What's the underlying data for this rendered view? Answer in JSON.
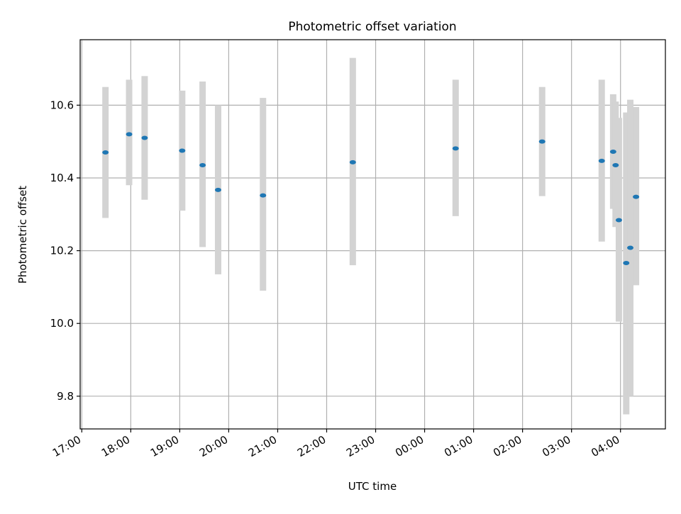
{
  "chart_data": {
    "type": "scatter",
    "title": "Photometric offset variation",
    "xlabel": "UTC time",
    "ylabel": "Photometric offset",
    "x_tick_labels": [
      "17:00",
      "18:00",
      "19:00",
      "20:00",
      "21:00",
      "22:00",
      "23:00",
      "00:00",
      "01:00",
      "02:00",
      "03:00",
      "04:00"
    ],
    "y_tick_labels": [
      "9.8",
      "10.0",
      "10.2",
      "10.4",
      "10.6"
    ],
    "y_ticks": [
      9.8,
      10.0,
      10.2,
      10.4,
      10.6
    ],
    "xlim": [
      "16:58",
      "04:55"
    ],
    "ylim": [
      9.71,
      10.78
    ],
    "grid": true,
    "colors": {
      "points": "#1f77b4",
      "error_bars": "#d3d3d3",
      "grid": "#b0b0b0"
    },
    "points": [
      {
        "x": "17:29",
        "y": 10.47,
        "lower": 10.29,
        "upper": 10.65
      },
      {
        "x": "17:58",
        "y": 10.52,
        "lower": 10.38,
        "upper": 10.67
      },
      {
        "x": "18:17",
        "y": 10.51,
        "lower": 10.34,
        "upper": 10.68
      },
      {
        "x": "19:03",
        "y": 10.475,
        "lower": 10.31,
        "upper": 10.64
      },
      {
        "x": "19:28",
        "y": 10.435,
        "lower": 10.21,
        "upper": 10.665
      },
      {
        "x": "19:47",
        "y": 10.367,
        "lower": 10.135,
        "upper": 10.6
      },
      {
        "x": "20:42",
        "y": 10.352,
        "lower": 10.09,
        "upper": 10.62
      },
      {
        "x": "22:32",
        "y": 10.443,
        "lower": 10.16,
        "upper": 10.73
      },
      {
        "x": "00:38",
        "y": 10.481,
        "lower": 10.295,
        "upper": 10.67
      },
      {
        "x": "02:24",
        "y": 10.5,
        "lower": 10.35,
        "upper": 10.65
      },
      {
        "x": "03:37",
        "y": 10.447,
        "lower": 10.225,
        "upper": 10.67
      },
      {
        "x": "03:51",
        "y": 10.472,
        "lower": 10.315,
        "upper": 10.63
      },
      {
        "x": "03:54",
        "y": 10.435,
        "lower": 10.265,
        "upper": 10.61
      },
      {
        "x": "03:58",
        "y": 10.284,
        "lower": 10.005,
        "upper": 10.565
      },
      {
        "x": "04:07",
        "y": 10.166,
        "lower": 9.75,
        "upper": 10.58
      },
      {
        "x": "04:12",
        "y": 10.208,
        "lower": 9.8,
        "upper": 10.615
      },
      {
        "x": "04:19",
        "y": 10.348,
        "lower": 10.105,
        "upper": 10.595
      }
    ]
  }
}
